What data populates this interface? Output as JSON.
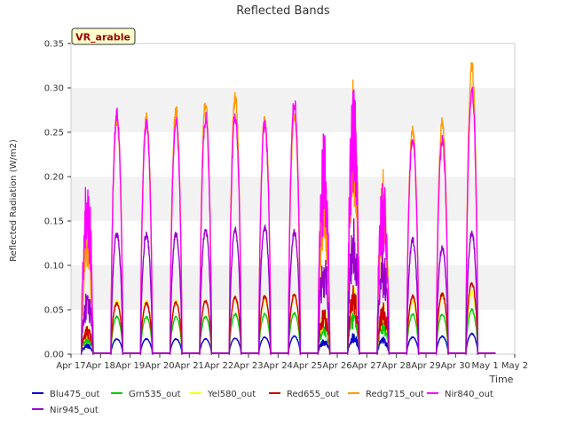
{
  "chart_data": {
    "type": "line",
    "title": "Reflected Bands",
    "xlabel": "Time",
    "ylabel": "Reflected Radiation (W/m2)",
    "badge": "VR_arable",
    "x_ticks": [
      "Apr 17",
      "Apr 18",
      "Apr 19",
      "Apr 20",
      "Apr 21",
      "Apr 22",
      "Apr 23",
      "Apr 24",
      "Apr 25",
      "Apr 26",
      "Apr 27",
      "Apr 28",
      "Apr 29",
      "Apr 30",
      "May 1",
      "May 2"
    ],
    "y_ticks": [
      "0.00",
      "0.05",
      "0.10",
      "0.15",
      "0.20",
      "0.25",
      "0.30",
      "0.35"
    ],
    "xlim": [
      0,
      15
    ],
    "ylim": [
      0,
      0.35
    ],
    "grid": "horizontal bands",
    "legend": "bottom",
    "day_start": 0.35,
    "day_end": 0.75,
    "series": [
      {
        "name": "Blu475_out",
        "color": "#0000cc",
        "noon_peak": [
          0.009,
          0.017,
          0.017,
          0.017,
          0.017,
          0.018,
          0.019,
          0.02,
          0.013,
          0.018,
          0.015,
          0.019,
          0.02,
          0.023
        ]
      },
      {
        "name": "Grn535_out",
        "color": "#00cc00",
        "noon_peak": [
          0.018,
          0.042,
          0.042,
          0.042,
          0.042,
          0.045,
          0.045,
          0.046,
          0.028,
          0.04,
          0.03,
          0.045,
          0.045,
          0.05
        ]
      },
      {
        "name": "Yel580_out",
        "color": "#ffff00",
        "noon_peak": [
          0.025,
          0.06,
          0.06,
          0.06,
          0.06,
          0.062,
          0.062,
          0.065,
          0.04,
          0.06,
          0.045,
          0.06,
          0.065,
          0.07
        ]
      },
      {
        "name": "Red655_out",
        "color": "#cc0000",
        "noon_peak": [
          0.025,
          0.057,
          0.057,
          0.058,
          0.06,
          0.064,
          0.065,
          0.067,
          0.04,
          0.06,
          0.045,
          0.065,
          0.068,
          0.08
        ]
      },
      {
        "name": "Redg715_out",
        "color": "#ff9900",
        "noon_peak": [
          0.115,
          0.265,
          0.268,
          0.275,
          0.283,
          0.288,
          0.263,
          0.267,
          0.17,
          0.24,
          0.16,
          0.253,
          0.26,
          0.323
        ]
      },
      {
        "name": "Nir840_out",
        "color": "#ff00ff",
        "noon_peak": [
          0.16,
          0.27,
          0.26,
          0.262,
          0.265,
          0.268,
          0.258,
          0.283,
          0.193,
          0.245,
          0.16,
          0.245,
          0.24,
          0.298
        ]
      },
      {
        "name": "Nir945_out",
        "color": "#9900cc",
        "noon_peak": [
          0.056,
          0.135,
          0.135,
          0.135,
          0.14,
          0.14,
          0.143,
          0.137,
          0.09,
          0.12,
          0.09,
          0.128,
          0.12,
          0.137
        ]
      }
    ]
  }
}
